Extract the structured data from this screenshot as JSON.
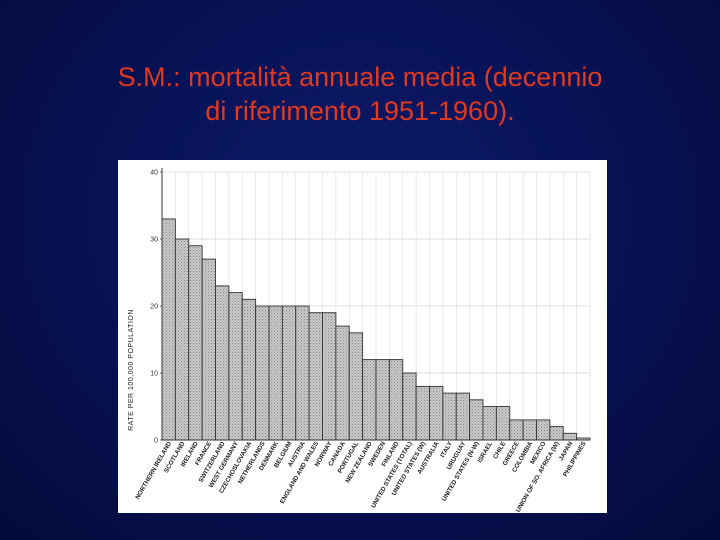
{
  "slide": {
    "title_line1": "S.M.: mortalità annuale media (decennio",
    "title_line2": "di riferimento 1951-1960)."
  },
  "chart_data": {
    "type": "bar",
    "title": "",
    "ylabel": "RATE PER 100,000 POPULATION",
    "xlabel": "",
    "ylim": [
      0,
      40
    ],
    "yticks": [
      "0",
      "10",
      "20",
      "30",
      "40"
    ],
    "grid": true,
    "categories": [
      "NORTHERN IRELAND",
      "SCOTLAND",
      "IRELAND",
      "FRANCE",
      "SWITZERLAND",
      "WEST GERMANY",
      "CZECHOSLOVAKIA",
      "NETHERLANDS",
      "DENMARK",
      "BELGIUM",
      "AUSTRIA",
      "ENGLAND AND WALES",
      "NORWAY",
      "CANADA",
      "PORTUGAL",
      "NEW ZEALAND",
      "SWEDEN",
      "FINLAND",
      "UNITED STATES (TOTAL)",
      "UNITED STATES (W)",
      "AUSTRALIA",
      "ITALY",
      "URUGUAY",
      "UNITED STATES (N-W)",
      "ISRAEL",
      "CHILE",
      "GREECE",
      "COLOMBIA",
      "MEXICO",
      "UNION OF SO. AFRICA (W)",
      "JAPAN",
      "PHILIPPINES"
    ],
    "values": [
      33,
      30,
      29,
      27,
      23,
      22,
      21,
      20,
      20,
      20,
      20,
      19,
      19,
      17,
      16,
      12,
      12,
      12,
      10,
      8,
      8,
      7,
      7,
      6,
      5,
      5,
      3,
      3,
      3,
      2,
      1,
      0.3
    ]
  }
}
